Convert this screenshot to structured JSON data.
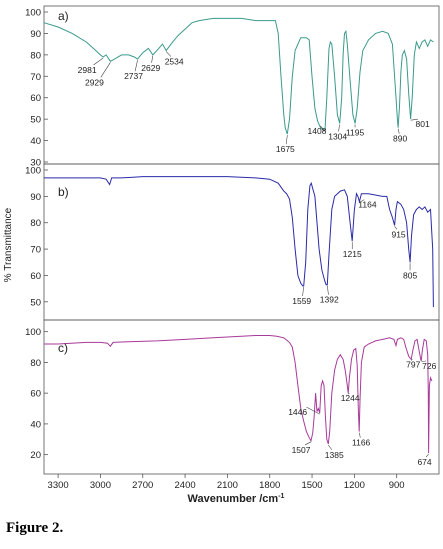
{
  "caption": "Figure 2.",
  "chart_data": {
    "type": "line",
    "ylabel": "% Transmittance",
    "xlabel_main": "Wavenumber /cm",
    "xlabel_sup": "-1",
    "x_ticks": [
      3300,
      3000,
      2700,
      2400,
      2100,
      1800,
      1500,
      1200,
      900
    ],
    "xlim": [
      3400,
      600
    ],
    "panels": [
      {
        "label": "a)",
        "color": "#3a9a8c",
        "ylim": [
          30,
          100
        ],
        "y_ticks": [
          30,
          40,
          50,
          60,
          70,
          80,
          90,
          100
        ],
        "series": [
          [
            3400,
            95
          ],
          [
            3300,
            93
          ],
          [
            3200,
            90
          ],
          [
            3100,
            86
          ],
          [
            3050,
            83
          ],
          [
            3000,
            80
          ],
          [
            2981,
            79
          ],
          [
            2960,
            80
          ],
          [
            2929,
            77
          ],
          [
            2900,
            78
          ],
          [
            2850,
            80
          ],
          [
            2800,
            80
          ],
          [
            2760,
            79
          ],
          [
            2737,
            78
          ],
          [
            2700,
            81
          ],
          [
            2660,
            83
          ],
          [
            2629,
            80
          ],
          [
            2600,
            82
          ],
          [
            2560,
            85
          ],
          [
            2534,
            82
          ],
          [
            2500,
            85
          ],
          [
            2450,
            89
          ],
          [
            2400,
            92
          ],
          [
            2350,
            95
          ],
          [
            2300,
            96
          ],
          [
            2200,
            97
          ],
          [
            2100,
            97
          ],
          [
            2000,
            97
          ],
          [
            1900,
            96
          ],
          [
            1800,
            96
          ],
          [
            1760,
            96
          ],
          [
            1740,
            90
          ],
          [
            1720,
            70
          ],
          [
            1700,
            52
          ],
          [
            1690,
            46
          ],
          [
            1675,
            43
          ],
          [
            1660,
            50
          ],
          [
            1640,
            70
          ],
          [
            1620,
            82
          ],
          [
            1600,
            85
          ],
          [
            1580,
            88
          ],
          [
            1560,
            88
          ],
          [
            1540,
            88
          ],
          [
            1520,
            87
          ],
          [
            1500,
            70
          ],
          [
            1480,
            55
          ],
          [
            1460,
            49
          ],
          [
            1440,
            46
          ],
          [
            1420,
            45
          ],
          [
            1408,
            45
          ],
          [
            1395,
            60
          ],
          [
            1380,
            83
          ],
          [
            1370,
            86
          ],
          [
            1360,
            85
          ],
          [
            1340,
            70
          ],
          [
            1320,
            52
          ],
          [
            1304,
            48
          ],
          [
            1290,
            60
          ],
          [
            1280,
            80
          ],
          [
            1270,
            90
          ],
          [
            1260,
            91
          ],
          [
            1250,
            85
          ],
          [
            1230,
            68
          ],
          [
            1210,
            52
          ],
          [
            1195,
            48
          ],
          [
            1180,
            55
          ],
          [
            1160,
            72
          ],
          [
            1140,
            82
          ],
          [
            1100,
            87
          ],
          [
            1050,
            90
          ],
          [
            1000,
            91
          ],
          [
            960,
            90
          ],
          [
            930,
            85
          ],
          [
            910,
            65
          ],
          [
            895,
            50
          ],
          [
            890,
            46
          ],
          [
            880,
            56
          ],
          [
            870,
            72
          ],
          [
            860,
            80
          ],
          [
            845,
            82
          ],
          [
            830,
            78
          ],
          [
            815,
            62
          ],
          [
            801,
            50
          ],
          [
            790,
            60
          ],
          [
            775,
            80
          ],
          [
            760,
            86
          ],
          [
            740,
            83
          ],
          [
            720,
            86
          ],
          [
            700,
            87
          ],
          [
            680,
            84
          ],
          [
            660,
            87
          ],
          [
            640,
            86
          ]
        ],
        "annotations": [
          {
            "text": "2981",
            "x": 2981,
            "y": 79
          },
          {
            "text": "2929",
            "x": 2929,
            "y": 77
          },
          {
            "text": "2737",
            "x": 2737,
            "y": 78
          },
          {
            "text": "2629",
            "x": 2629,
            "y": 80
          },
          {
            "text": "2534",
            "x": 2534,
            "y": 82
          },
          {
            "text": "1675",
            "x": 1675,
            "y": 43
          },
          {
            "text": "1408",
            "x": 1408,
            "y": 45
          },
          {
            "text": "1304",
            "x": 1304,
            "y": 48
          },
          {
            "text": "1195",
            "x": 1195,
            "y": 48
          },
          {
            "text": "890",
            "x": 890,
            "y": 46
          },
          {
            "text": "801",
            "x": 801,
            "y": 50
          }
        ]
      },
      {
        "label": "b)",
        "color": "#2a2aa8",
        "ylim": [
          45,
          100
        ],
        "y_ticks": [
          50,
          60,
          70,
          80,
          90,
          100
        ],
        "series": [
          [
            3400,
            97
          ],
          [
            3200,
            97
          ],
          [
            3000,
            97
          ],
          [
            2960,
            96.5
          ],
          [
            2935,
            94.5
          ],
          [
            2920,
            97
          ],
          [
            2850,
            97
          ],
          [
            2700,
            97.5
          ],
          [
            2400,
            97.5
          ],
          [
            2100,
            97.5
          ],
          [
            1900,
            97
          ],
          [
            1800,
            96.5
          ],
          [
            1740,
            95
          ],
          [
            1700,
            92
          ],
          [
            1680,
            91
          ],
          [
            1660,
            89
          ],
          [
            1640,
            82
          ],
          [
            1620,
            70
          ],
          [
            1600,
            60
          ],
          [
            1580,
            57
          ],
          [
            1565,
            56
          ],
          [
            1559,
            56
          ],
          [
            1545,
            65
          ],
          [
            1530,
            85
          ],
          [
            1515,
            94
          ],
          [
            1505,
            95
          ],
          [
            1495,
            93
          ],
          [
            1480,
            90
          ],
          [
            1465,
            80
          ],
          [
            1450,
            70
          ],
          [
            1430,
            62
          ],
          [
            1410,
            58
          ],
          [
            1400,
            56.5
          ],
          [
            1392,
            56.5
          ],
          [
            1380,
            68
          ],
          [
            1360,
            85
          ],
          [
            1340,
            90
          ],
          [
            1300,
            92
          ],
          [
            1270,
            92.5
          ],
          [
            1250,
            90
          ],
          [
            1230,
            80
          ],
          [
            1215,
            73
          ],
          [
            1200,
            85
          ],
          [
            1185,
            91
          ],
          [
            1175,
            90
          ],
          [
            1164,
            88
          ],
          [
            1150,
            91
          ],
          [
            1100,
            91
          ],
          [
            1000,
            90
          ],
          [
            970,
            90
          ],
          [
            950,
            85
          ],
          [
            930,
            82
          ],
          [
            915,
            79
          ],
          [
            905,
            85
          ],
          [
            895,
            88
          ],
          [
            870,
            87
          ],
          [
            850,
            85
          ],
          [
            830,
            80
          ],
          [
            815,
            70
          ],
          [
            805,
            65
          ],
          [
            795,
            75
          ],
          [
            780,
            83
          ],
          [
            760,
            85
          ],
          [
            740,
            86
          ],
          [
            720,
            85
          ],
          [
            700,
            86
          ],
          [
            680,
            84
          ],
          [
            660,
            85
          ],
          [
            645,
            70
          ],
          [
            640,
            48
          ]
        ],
        "annotations": [
          {
            "text": "1559",
            "x": 1559,
            "y": 56
          },
          {
            "text": "1392",
            "x": 1392,
            "y": 56.5
          },
          {
            "text": "1215",
            "x": 1215,
            "y": 73
          },
          {
            "text": "1164",
            "x": 1164,
            "y": 88
          },
          {
            "text": "915",
            "x": 915,
            "y": 79
          },
          {
            "text": "805",
            "x": 805,
            "y": 65
          }
        ]
      },
      {
        "label": "c)",
        "color": "#a83a9a",
        "ylim": [
          10,
          105
        ],
        "y_ticks": [
          20,
          40,
          60,
          80,
          100
        ],
        "series": [
          [
            3400,
            92
          ],
          [
            3300,
            92
          ],
          [
            3100,
            93
          ],
          [
            3000,
            93
          ],
          [
            2950,
            92.5
          ],
          [
            2930,
            90.5
          ],
          [
            2910,
            93
          ],
          [
            2800,
            93.5
          ],
          [
            2600,
            94
          ],
          [
            2400,
            95
          ],
          [
            2200,
            96
          ],
          [
            2000,
            97
          ],
          [
            1900,
            97.5
          ],
          [
            1800,
            97.5
          ],
          [
            1750,
            97
          ],
          [
            1700,
            96
          ],
          [
            1660,
            93
          ],
          [
            1640,
            90
          ],
          [
            1620,
            80
          ],
          [
            1600,
            65
          ],
          [
            1580,
            50
          ],
          [
            1560,
            42
          ],
          [
            1540,
            35
          ],
          [
            1520,
            31
          ],
          [
            1507,
            29
          ],
          [
            1495,
            34
          ],
          [
            1485,
            45
          ],
          [
            1475,
            60
          ],
          [
            1465,
            48
          ],
          [
            1455,
            50
          ],
          [
            1446,
            47
          ],
          [
            1435,
            65
          ],
          [
            1425,
            68
          ],
          [
            1415,
            65
          ],
          [
            1405,
            45
          ],
          [
            1395,
            30
          ],
          [
            1385,
            27
          ],
          [
            1375,
            35
          ],
          [
            1360,
            60
          ],
          [
            1340,
            75
          ],
          [
            1320,
            82
          ],
          [
            1300,
            85
          ],
          [
            1280,
            82
          ],
          [
            1265,
            75
          ],
          [
            1250,
            65
          ],
          [
            1244,
            60
          ],
          [
            1235,
            70
          ],
          [
            1220,
            82
          ],
          [
            1205,
            88
          ],
          [
            1190,
            89
          ],
          [
            1180,
            78
          ],
          [
            1172,
            50
          ],
          [
            1166,
            35
          ],
          [
            1160,
            55
          ],
          [
            1150,
            80
          ],
          [
            1130,
            90
          ],
          [
            1100,
            92
          ],
          [
            1050,
            94
          ],
          [
            1000,
            95
          ],
          [
            950,
            96
          ],
          [
            920,
            95
          ],
          [
            905,
            91
          ],
          [
            895,
            95
          ],
          [
            870,
            96
          ],
          [
            850,
            95
          ],
          [
            835,
            90
          ],
          [
            815,
            84
          ],
          [
            797,
            82
          ],
          [
            785,
            88
          ],
          [
            770,
            94
          ],
          [
            755,
            95
          ],
          [
            742,
            88
          ],
          [
            730,
            82
          ],
          [
            726,
            81
          ],
          [
            718,
            88
          ],
          [
            705,
            95
          ],
          [
            690,
            94
          ],
          [
            680,
            85
          ],
          [
            676,
            60
          ],
          [
            674,
            21
          ],
          [
            668,
            65
          ],
          [
            660,
            70
          ],
          [
            650,
            68
          ]
        ],
        "annotations": [
          {
            "text": "1446",
            "x": 1446,
            "y": 47
          },
          {
            "text": "1507",
            "x": 1507,
            "y": 29
          },
          {
            "text": "1385",
            "x": 1385,
            "y": 27
          },
          {
            "text": "1244",
            "x": 1244,
            "y": 60
          },
          {
            "text": "1166",
            "x": 1166,
            "y": 35
          },
          {
            "text": "797",
            "x": 797,
            "y": 82
          },
          {
            "text": "726",
            "x": 726,
            "y": 81
          },
          {
            "text": "674",
            "x": 674,
            "y": 21
          }
        ]
      }
    ]
  }
}
